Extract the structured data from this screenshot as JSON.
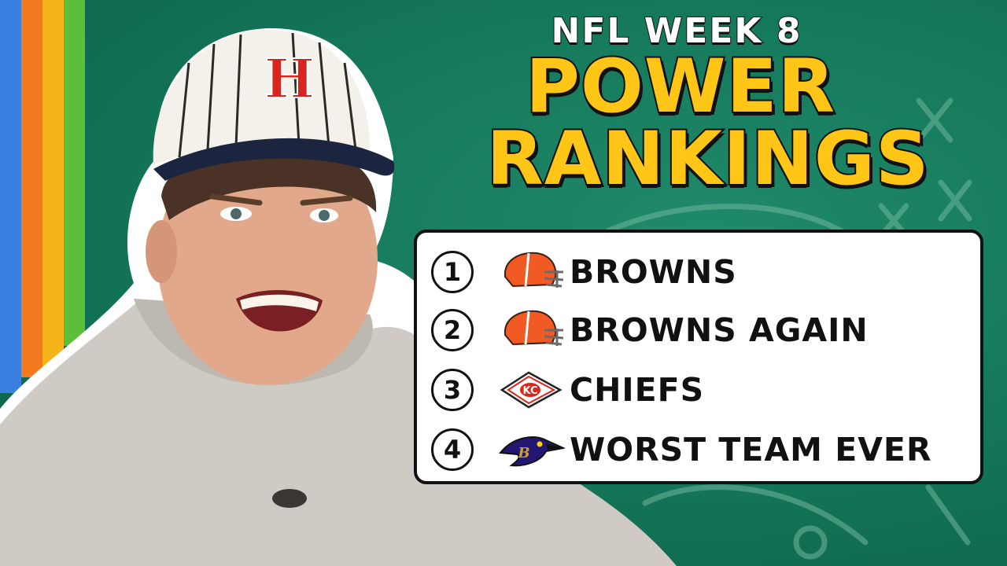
{
  "kicker": "NFL WEEK 8",
  "headline": [
    "POWER",
    "RANKINGS"
  ],
  "colors": {
    "background": "#137457",
    "title_yellow": "#ffc617",
    "stripes": [
      "#3b7fe0",
      "#f47a20",
      "#f6b41a",
      "#5cbf3a"
    ]
  },
  "rankings": [
    {
      "rank": "1",
      "team": "BROWNS",
      "logo_icon": "browns-helmet-icon"
    },
    {
      "rank": "2",
      "team": "BROWNS AGAIN",
      "logo_icon": "browns-helmet-icon"
    },
    {
      "rank": "3",
      "team": "CHIEFS",
      "logo_icon": "chiefs-arrowhead-icon"
    },
    {
      "rank": "4",
      "team": "WORST TEAM EVER",
      "logo_icon": "ravens-head-icon"
    }
  ],
  "cap_letter": "H"
}
